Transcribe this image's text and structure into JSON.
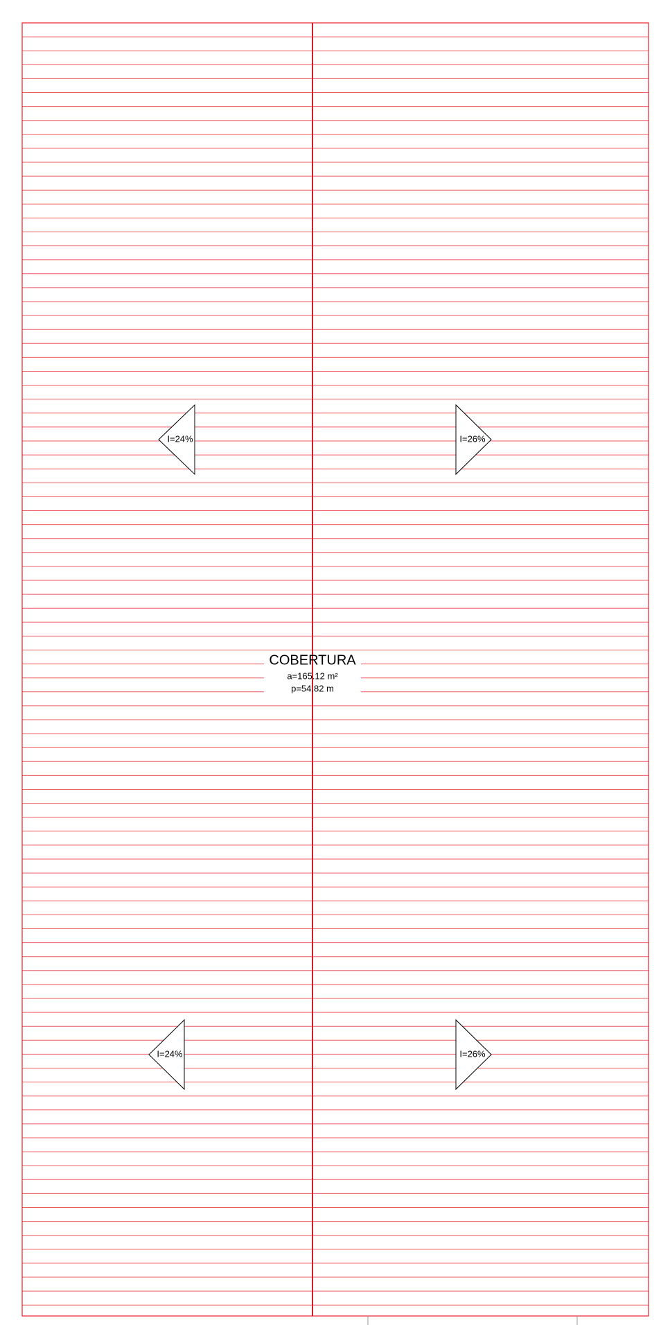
{
  "title": "COBERTURA",
  "area": "a=165.12 m²",
  "perimeter": "p=54.82 m",
  "slopes": [
    {
      "label": "I=24%"
    },
    {
      "label": "I=26%"
    },
    {
      "label": "I=24%"
    },
    {
      "label": "I=26%"
    }
  ]
}
